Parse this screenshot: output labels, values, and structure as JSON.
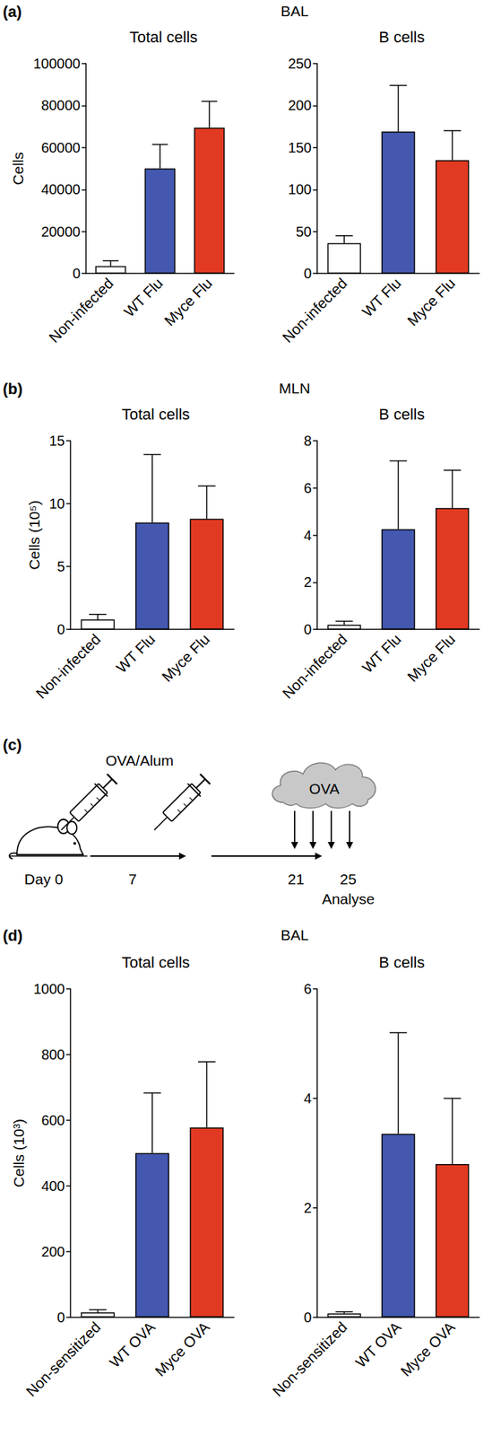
{
  "chart_data": [
    {
      "type": "bar",
      "title": "Total cells",
      "ylabel": "Cells",
      "categories": [
        "Non-infected",
        "WT Flu",
        "Myce Flu"
      ],
      "values": [
        3500,
        50000,
        69500
      ],
      "errors": [
        2500,
        11500,
        12500
      ],
      "colors": [
        "#ffffff",
        "#4458b0",
        "#e23a22"
      ],
      "ylim": [
        0,
        100000
      ],
      "yticks": [
        0,
        20000,
        40000,
        60000,
        80000,
        100000
      ],
      "grid": false
    },
    {
      "type": "bar",
      "title": "B cells",
      "categories": [
        "Non-infected",
        "WT Flu",
        "Myce Flu"
      ],
      "values": [
        36,
        169,
        135
      ],
      "errors": [
        9,
        55,
        35
      ],
      "colors": [
        "#ffffff",
        "#4458b0",
        "#e23a22"
      ],
      "ylim": [
        0,
        250
      ],
      "yticks": [
        0,
        50,
        100,
        150,
        200,
        250
      ],
      "grid": false
    },
    {
      "type": "bar",
      "title": "Total cells",
      "ylabel": "Cells (10⁵)",
      "categories": [
        "Non-infected",
        "WT Flu",
        "Myce Flu"
      ],
      "values": [
        0.8,
        8.5,
        8.8
      ],
      "errors": [
        0.4,
        5.4,
        2.6
      ],
      "colors": [
        "#ffffff",
        "#4458b0",
        "#e23a22"
      ],
      "ylim": [
        0,
        15
      ],
      "yticks": [
        0,
        5,
        10,
        15
      ],
      "grid": false
    },
    {
      "type": "bar",
      "title": "B cells",
      "categories": [
        "Non-infected",
        "WT Flu",
        "Myce Flu"
      ],
      "values": [
        0.2,
        4.25,
        5.15
      ],
      "errors": [
        0.15,
        2.9,
        1.6
      ],
      "colors": [
        "#ffffff",
        "#4458b0",
        "#e23a22"
      ],
      "ylim": [
        0,
        8
      ],
      "yticks": [
        0,
        2,
        4,
        6,
        8
      ],
      "grid": false
    },
    {
      "type": "bar",
      "title": "Total cells",
      "ylabel": "Cells (10³)",
      "categories": [
        "Non-sensitized",
        "WT OVA",
        "Myce OVA"
      ],
      "values": [
        15,
        500,
        578
      ],
      "errors": [
        8,
        183,
        200
      ],
      "colors": [
        "#ffffff",
        "#4458b0",
        "#e23a22"
      ],
      "ylim": [
        0,
        1000
      ],
      "yticks": [
        0,
        200,
        400,
        600,
        800,
        1000
      ],
      "grid": false
    },
    {
      "type": "bar",
      "title": "B cells",
      "categories": [
        "Non-sensitized",
        "WT OVA",
        "Myce OVA"
      ],
      "values": [
        0.07,
        3.35,
        2.8
      ],
      "errors": [
        0.03,
        1.85,
        1.2
      ],
      "colors": [
        "#ffffff",
        "#4458b0",
        "#e23a22"
      ],
      "ylim": [
        0,
        6
      ],
      "yticks": [
        0,
        2,
        4,
        6
      ],
      "grid": false
    }
  ],
  "panels": [
    {
      "letter": "(a)",
      "heading": "BAL"
    },
    {
      "letter": "(b)",
      "heading": "MLN"
    },
    {
      "letter": "(c)",
      "diagram": {
        "injection": "OVA/Alum",
        "challenge": "OVA",
        "days": [
          "Day 0",
          "7",
          "21",
          "25"
        ],
        "end": "Analyse"
      }
    },
    {
      "letter": "(d)",
      "heading": "BAL"
    }
  ]
}
